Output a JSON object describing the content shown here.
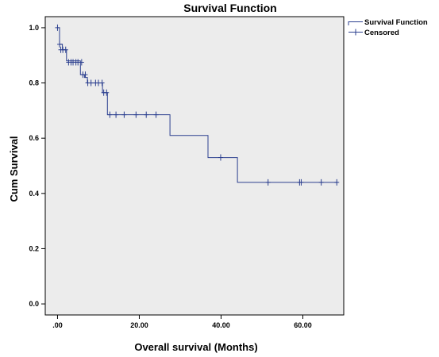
{
  "chart_data": {
    "type": "line",
    "title": "Survival Function",
    "xlabel": "Overall survival (Months)",
    "ylabel": "Cum Survival",
    "xlim": [
      -3,
      70
    ],
    "ylim": [
      -0.04,
      1.04
    ],
    "x_ticks": [
      0,
      20,
      40,
      60
    ],
    "x_tick_labels": [
      ".00",
      "20.00",
      "40.00",
      "60.00"
    ],
    "y_ticks": [
      0,
      0.2,
      0.4,
      0.6,
      0.8,
      1.0
    ],
    "y_tick_labels": [
      "0.0",
      "0.2",
      "0.4",
      "0.6",
      "0.8",
      "1.0"
    ],
    "grid": false,
    "plot_background": "#ececec",
    "line_color": "#2b3f8f",
    "legend_position": "top-right, outside plot",
    "series": [
      {
        "name": "Survival Function",
        "step": true,
        "x": [
          0,
          0.5,
          1.2,
          2.2,
          5.6,
          6.6,
          7.3,
          11.0,
          12.2,
          27.5,
          36.8,
          44.0,
          68.5
        ],
        "y": [
          1.0,
          0.94,
          0.92,
          0.88,
          0.83,
          0.82,
          0.8,
          0.765,
          0.685,
          0.61,
          0.53,
          0.44,
          0.44
        ]
      },
      {
        "name": "Censored",
        "marker": "+",
        "x": [
          0,
          0.5,
          0.8,
          1.3,
          2.0,
          2.7,
          3.3,
          3.8,
          4.5,
          5.0,
          5.9,
          6.2,
          6.8,
          7.4,
          8.2,
          9.3,
          10.0,
          10.9,
          11.3,
          12.0,
          12.8,
          14.3,
          16.3,
          19.2,
          21.7,
          24.1,
          39.9,
          51.5,
          59.2,
          59.6,
          64.5,
          68.3
        ],
        "y": [
          1.0,
          0.94,
          0.92,
          0.92,
          0.92,
          0.875,
          0.875,
          0.875,
          0.875,
          0.875,
          0.875,
          0.83,
          0.83,
          0.8,
          0.8,
          0.8,
          0.8,
          0.8,
          0.765,
          0.765,
          0.685,
          0.685,
          0.685,
          0.685,
          0.685,
          0.685,
          0.53,
          0.44,
          0.44,
          0.44,
          0.44,
          0.44
        ]
      }
    ]
  }
}
